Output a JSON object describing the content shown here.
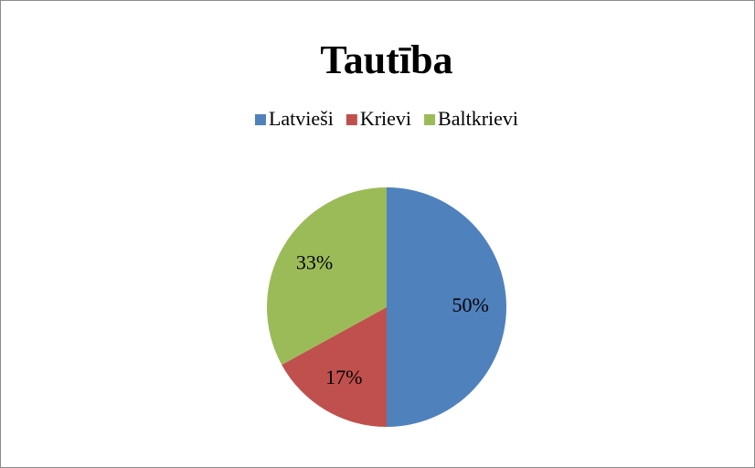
{
  "chart_data": {
    "type": "pie",
    "title": "Tautība",
    "categories": [
      "Latvieši",
      "Krievi",
      "Baltkrievi"
    ],
    "values": [
      50,
      17,
      33
    ],
    "value_labels": [
      "50%",
      "17%",
      "33%"
    ],
    "colors": [
      "#4f81bd",
      "#c0504d",
      "#9bbb59"
    ],
    "legend": "top"
  }
}
